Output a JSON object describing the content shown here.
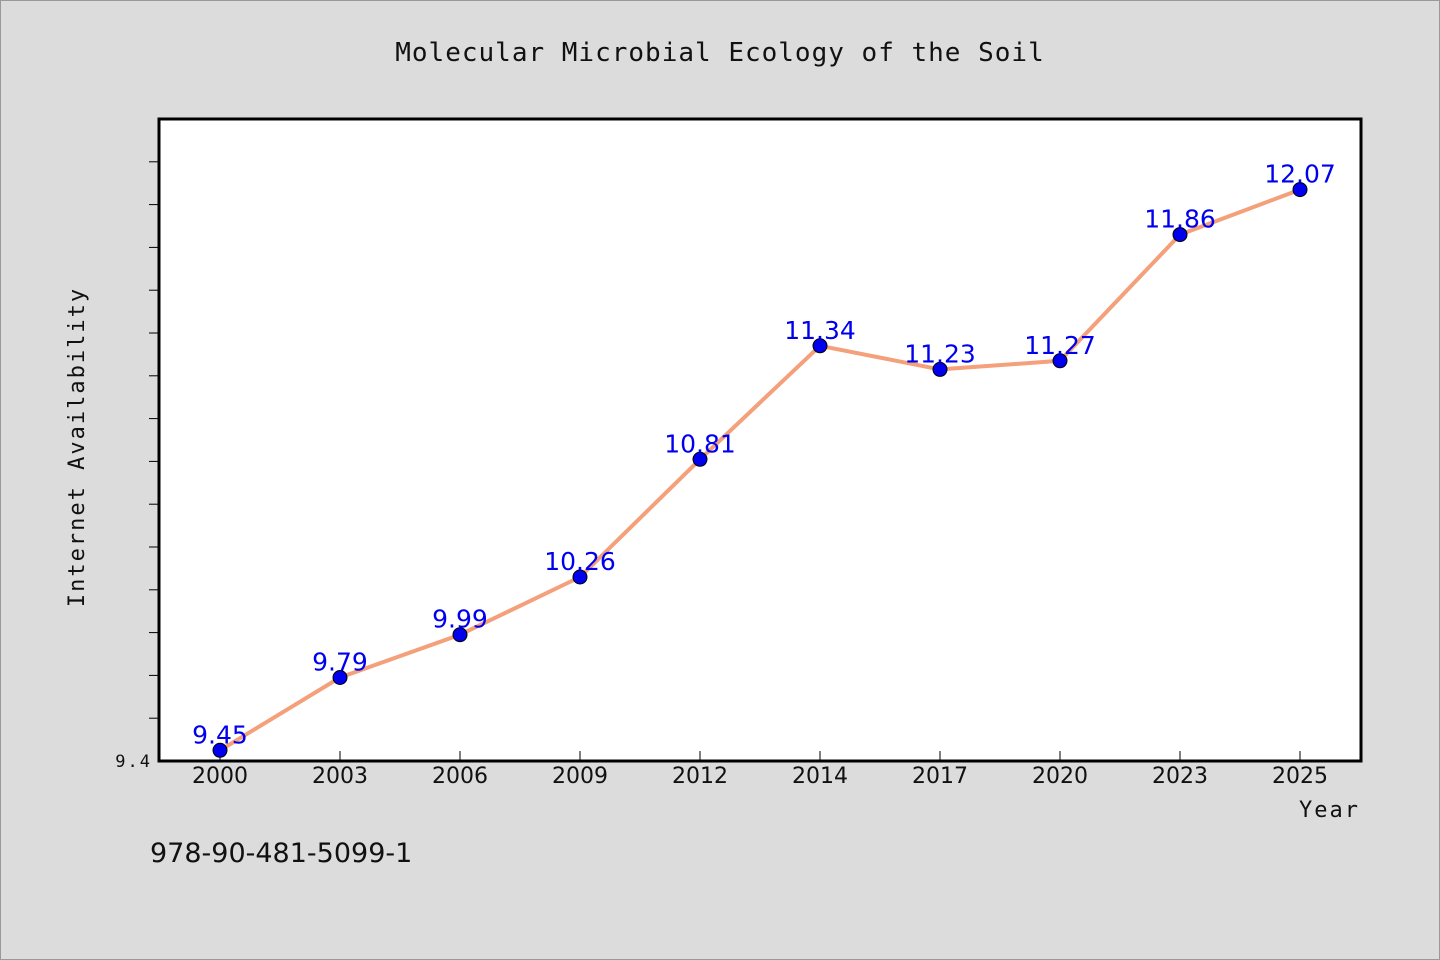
{
  "page": {
    "isbn": "978-90-481-5099-1"
  },
  "colors": {
    "background": "#dcdcdc",
    "plot_background": "#ffffff",
    "line": "#f4a07a",
    "marker": "#0000ee",
    "data_label": "#0000ee"
  },
  "chart_data": {
    "type": "line",
    "title": "Molecular Microbial Ecology of the Soil",
    "xlabel": "Year",
    "ylabel": "Internet Availability",
    "categories": [
      "2000",
      "2003",
      "2006",
      "2009",
      "2012",
      "2014",
      "2017",
      "2020",
      "2023",
      "2025"
    ],
    "series": [
      {
        "values": [
          9.45,
          9.79,
          9.99,
          10.26,
          10.81,
          11.34,
          11.23,
          11.27,
          11.86,
          12.07
        ],
        "labels": [
          "9.45",
          "9.79",
          "9.99",
          "10.26",
          "10.81",
          "11.34",
          "11.23",
          "11.27",
          "11.86",
          "12.07"
        ]
      }
    ],
    "ylim": [
      9.4,
      12.4
    ],
    "ytick_labels": [
      "9.4"
    ],
    "grid": false,
    "legend": "none",
    "markers": "circle"
  }
}
